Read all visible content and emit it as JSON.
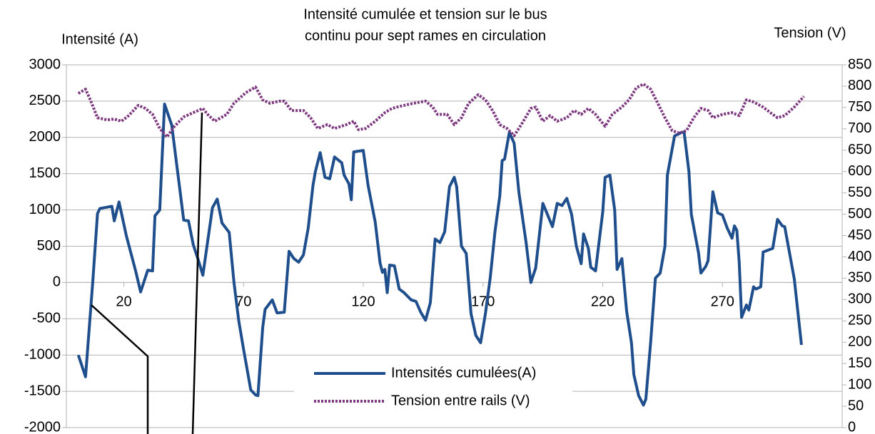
{
  "chart_data": {
    "type": "line",
    "title": [
      "Intensité cumulée et tension sur le bus",
      "continu pour sept rames en circulation"
    ],
    "y_label": "Intensité  (A)",
    "y2_label": "Tension (V)",
    "xlim": [
      -4,
      320
    ],
    "xticks": [
      20,
      70,
      120,
      170,
      220,
      270
    ],
    "ylim": [
      -2000,
      3000
    ],
    "yticks": [
      -2000,
      -1500,
      -1000,
      -500,
      0,
      500,
      1000,
      1500,
      2000,
      2500,
      3000
    ],
    "y2lim": [
      0,
      850
    ],
    "y2ticks": [
      0,
      50,
      100,
      150,
      200,
      250,
      300,
      350,
      400,
      450,
      500,
      550,
      600,
      650,
      700,
      750,
      800,
      850
    ],
    "grid": true,
    "legend": "bottom",
    "series": [
      {
        "name": "Intensités cumulées(A)",
        "color": "#1f4e8c",
        "style": "solid",
        "x": [
          1,
          4,
          7,
          9,
          10,
          15,
          16,
          18,
          21,
          25,
          27,
          30,
          32,
          33,
          35,
          37,
          40,
          45,
          47,
          49,
          51,
          53,
          57,
          59,
          61,
          64,
          66,
          68,
          70,
          73,
          75,
          76,
          78,
          79,
          82,
          84,
          87,
          89,
          91,
          93,
          95,
          97,
          99,
          100,
          102,
          104,
          106,
          108,
          111,
          112,
          114,
          115,
          116,
          120,
          122,
          125,
          127,
          128,
          129,
          130,
          131,
          133,
          135,
          137,
          140,
          142,
          144,
          146,
          148,
          150,
          152,
          154,
          156,
          158,
          159,
          161,
          163,
          165,
          167,
          169,
          171,
          173,
          175,
          177,
          178,
          179,
          181,
          183,
          185,
          188,
          190,
          192,
          195,
          199,
          201,
          203,
          205,
          207,
          209,
          211,
          212,
          214,
          215,
          217,
          219,
          220,
          221,
          223,
          225,
          226,
          228,
          230,
          232,
          233,
          235,
          237,
          238,
          239,
          240,
          242,
          244,
          246,
          247,
          250,
          253,
          254,
          256,
          257,
          260,
          261,
          263,
          264,
          266,
          268,
          270,
          272,
          274,
          275,
          276,
          277,
          278,
          280,
          281,
          283,
          284,
          286,
          287,
          291,
          293,
          295,
          296,
          300,
          303
        ],
        "values": [
          -1000,
          -1300,
          0,
          950,
          1020,
          1050,
          850,
          1110,
          650,
          150,
          -130,
          170,
          160,
          920,
          1000,
          2460,
          2170,
          860,
          850,
          520,
          320,
          100,
          1030,
          1150,
          820,
          690,
          0,
          -530,
          -920,
          -1480,
          -1550,
          -1560,
          -620,
          -370,
          -240,
          -420,
          -410,
          430,
          330,
          280,
          380,
          750,
          1340,
          1530,
          1790,
          1450,
          1430,
          1730,
          1650,
          1480,
          1360,
          1140,
          1800,
          1820,
          1340,
          830,
          270,
          140,
          180,
          -140,
          240,
          230,
          -90,
          -140,
          -240,
          -260,
          -410,
          -520,
          -280,
          600,
          550,
          700,
          1320,
          1450,
          1320,
          500,
          400,
          -430,
          -730,
          -830,
          -430,
          60,
          700,
          1190,
          1680,
          1700,
          2070,
          1920,
          1240,
          550,
          0,
          200,
          1090,
          770,
          1090,
          1060,
          1160,
          940,
          500,
          260,
          670,
          470,
          210,
          160,
          700,
          970,
          1450,
          1480,
          1000,
          180,
          330,
          -400,
          -830,
          -1270,
          -1560,
          -1690,
          -1610,
          -1220,
          -830,
          60,
          130,
          500,
          1480,
          2020,
          2070,
          2070,
          1530,
          940,
          410,
          130,
          220,
          300,
          1250,
          960,
          930,
          750,
          610,
          780,
          720,
          280,
          -480,
          -310,
          -380,
          -60,
          -90,
          -60,
          420,
          470,
          870,
          780,
          770,
          50,
          -860
        ]
      },
      {
        "name": "Tension entre rails (V)",
        "color": "#7e3a80",
        "style": "dashed",
        "axis": "y2",
        "x": [
          1,
          4,
          6,
          9,
          13,
          16,
          19,
          22,
          26,
          29,
          32,
          35,
          38,
          41,
          45,
          49,
          53,
          55,
          58,
          63,
          66,
          71,
          75,
          78,
          81,
          85,
          87,
          90,
          95,
          98,
          101,
          105,
          108,
          113,
          116,
          118,
          121,
          125,
          129,
          132,
          134,
          137,
          141,
          146,
          149,
          151,
          155,
          158,
          161,
          164,
          168,
          171,
          174,
          177,
          180,
          183,
          186,
          190,
          192,
          195,
          198,
          201,
          205,
          208,
          211,
          214,
          217,
          221,
          224,
          228,
          231,
          234,
          237,
          240,
          243,
          246,
          249,
          252,
          255,
          258,
          261,
          264,
          266,
          270,
          274,
          277,
          280,
          283,
          287,
          290,
          293,
          296,
          300,
          304
        ],
        "values": [
          783,
          793,
          768,
          726,
          721,
          723,
          718,
          731,
          755,
          748,
          734,
          701,
          681,
          705,
          728,
          738,
          748,
          734,
          718,
          734,
          760,
          785,
          798,
          768,
          760,
          765,
          765,
          743,
          743,
          726,
          701,
          710,
          701,
          710,
          718,
          698,
          701,
          718,
          738,
          748,
          751,
          755,
          760,
          765,
          751,
          734,
          734,
          710,
          726,
          760,
          780,
          768,
          743,
          710,
          701,
          684,
          710,
          748,
          751,
          718,
          731,
          718,
          726,
          743,
          734,
          748,
          734,
          706,
          734,
          751,
          768,
          796,
          805,
          793,
          760,
          726,
          696,
          690,
          696,
          726,
          748,
          743,
          726,
          734,
          738,
          731,
          768,
          763,
          751,
          738,
          726,
          731,
          751,
          776
        ]
      }
    ]
  }
}
